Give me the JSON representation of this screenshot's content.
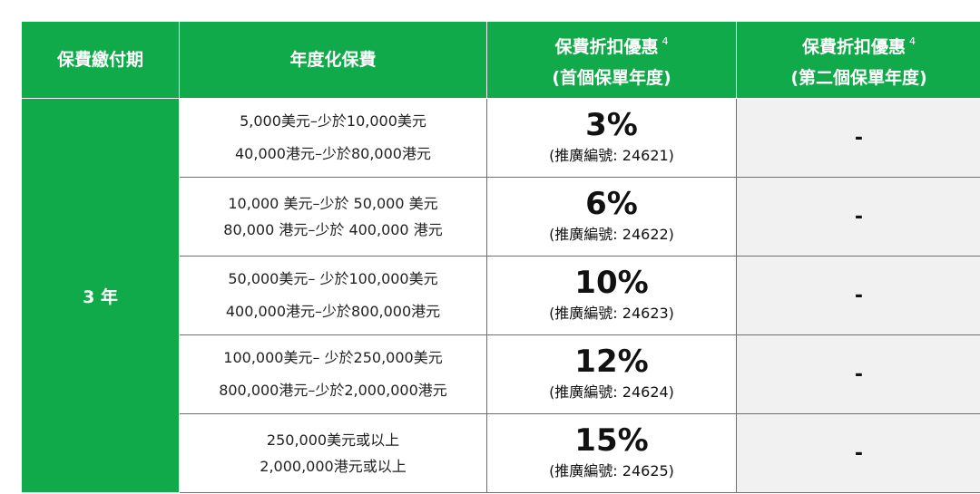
{
  "headers": {
    "term": "保費繳付期",
    "premium": "年度化保費",
    "first_year": {
      "line1": "保費折扣優惠",
      "sup": "4",
      "line2": "(首個保單年度)"
    },
    "second_year": {
      "line1": "保費折扣優惠",
      "sup": "4",
      "line2": "(第二個保單年度)"
    }
  },
  "term_value": "3 年",
  "rows": [
    {
      "usd": "5,000美元–少於10,000美元",
      "hkd": "40,000港元–少於80,000港元",
      "discount": "3%",
      "code": "(推廣編號: 24621)",
      "second": "-"
    },
    {
      "usd": "10,000 美元–少於 50,000 美元",
      "hkd": "80,000 港元–少於 400,000 港元",
      "discount": "6%",
      "code": "(推廣編號: 24622)",
      "second": "-"
    },
    {
      "usd": "50,000美元– 少於100,000美元",
      "hkd": "400,000港元–少於800,000港元",
      "discount": "10%",
      "code": "(推廣編號: 24623)",
      "second": "-"
    },
    {
      "usd": "100,000美元– 少於250,000美元",
      "hkd": "800,000港元–少於2,000,000港元",
      "discount": "12%",
      "code": "(推廣編號: 24624)",
      "second": "-"
    },
    {
      "usd": "250,000美元或以上",
      "hkd": "2,000,000港元或以上",
      "discount": "15%",
      "code": "(推廣編號: 24625)",
      "second": "-"
    }
  ],
  "colors": {
    "header_green": "#10aa4a",
    "second_col_bg": "#f1f1f1"
  }
}
